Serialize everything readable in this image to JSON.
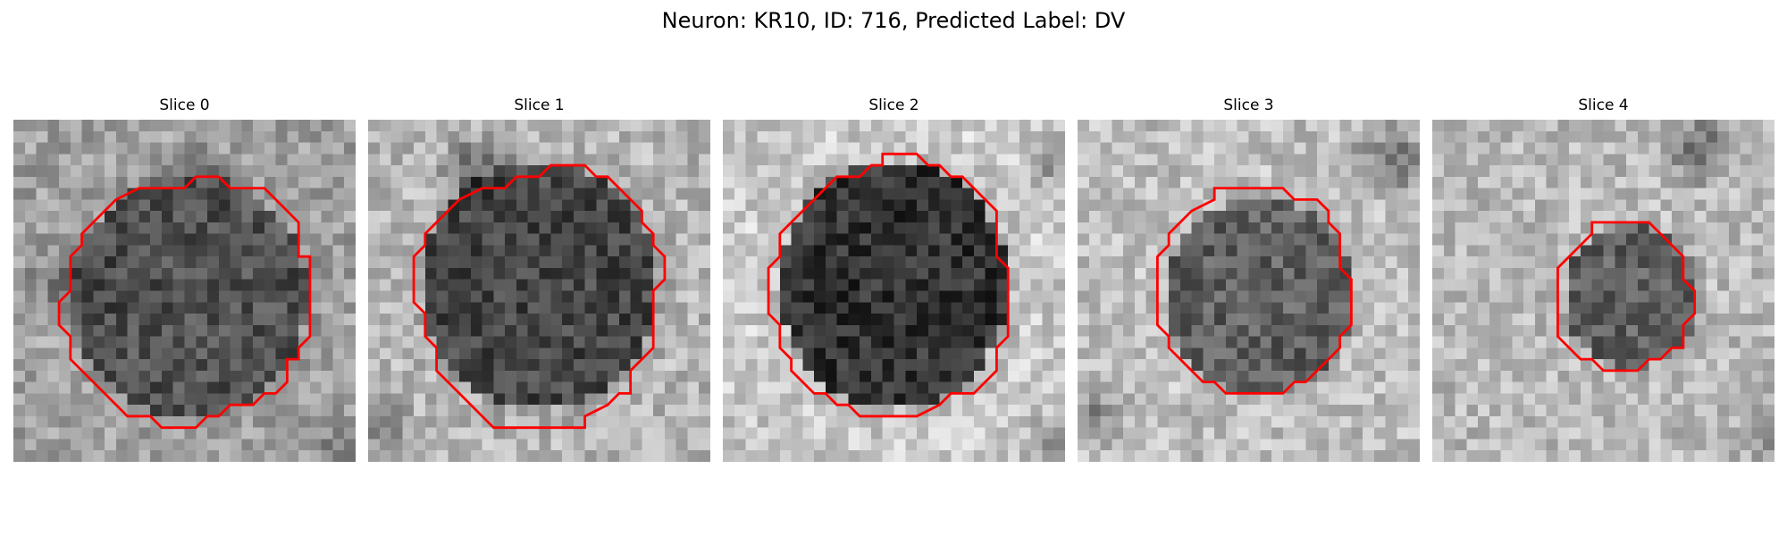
{
  "figure": {
    "title": "Neuron: KR10, ID: 716, Predicted Label: DV",
    "contour_color": "#ff0000"
  },
  "slices": [
    {
      "title": "Slice 0"
    },
    {
      "title": "Slice 1"
    },
    {
      "title": "Slice 2"
    },
    {
      "title": "Slice 3"
    },
    {
      "title": "Slice 4"
    }
  ]
}
